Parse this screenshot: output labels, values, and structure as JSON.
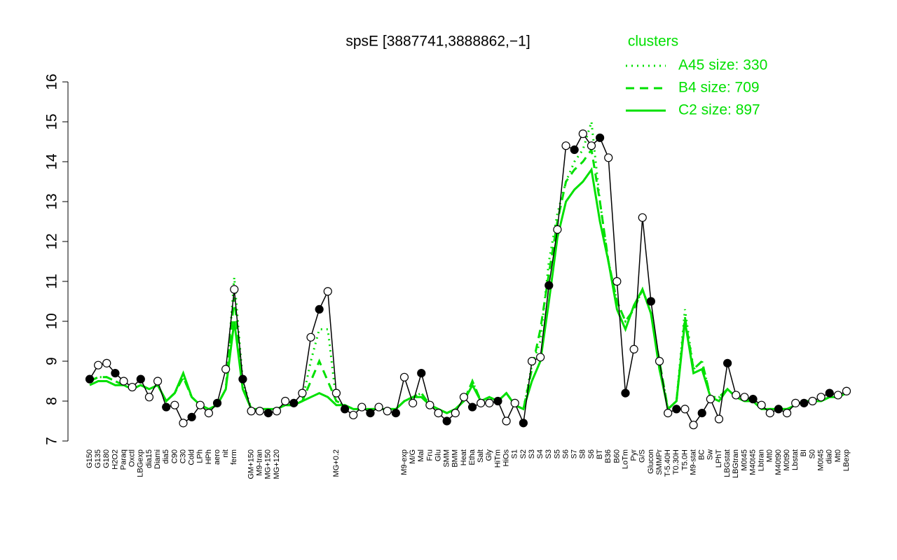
{
  "chart_data": {
    "type": "line",
    "title": "spsE [3887741,3888862,−1]",
    "legend_title": "clusters",
    "legend_position": "top-right",
    "ylim": [
      7,
      16
    ],
    "yticks": [
      7,
      8,
      9,
      10,
      11,
      12,
      13,
      14,
      15,
      16
    ],
    "categories": [
      "G150",
      "G135",
      "G180",
      "H2O2",
      "Paraq",
      "Oxctl",
      "LBGexp",
      "dia15",
      "Diami",
      "dia5",
      "C90",
      "C30",
      "Cold",
      "LPh",
      "HPh",
      "aero",
      "nit",
      "ferm",
      null,
      "GM+150",
      "M9-tran",
      "MG+150",
      "MG+120",
      null,
      null,
      null,
      null,
      null,
      null,
      "MG+0.2",
      null,
      null,
      null,
      null,
      null,
      null,
      null,
      "M9-exp",
      "M/G",
      "Mal",
      "Fru",
      "Glu",
      "SMM",
      "BMM",
      "Heat",
      "Etha",
      "Salt",
      "Gly",
      "HiTm",
      "HiOs",
      "S1",
      "S2",
      "S3",
      "S4",
      "S3",
      "S5",
      "S6",
      "S7",
      "S8",
      "S6",
      "BT",
      "B36",
      "B60",
      "LoTm",
      "Pyr",
      "G/S",
      "Glucon",
      "SMMPr",
      "T-5.40H",
      "T0.30H",
      "T5.0H",
      "M9-stat",
      "BC",
      "Sw",
      "LPhT",
      "LBGstat",
      "LBGtran",
      "M0t45",
      "M40t45",
      "Lbtran",
      "Mt0",
      "M40t90",
      "M0t90",
      "Lbstat",
      "BI",
      "S0",
      "M0t45",
      "dia0",
      "Mt0",
      "LBexp"
    ],
    "series": [
      {
        "name": "expression",
        "color": "#000000",
        "style": "points-line",
        "values": [
          8.55,
          8.9,
          8.95,
          8.7,
          8.5,
          8.35,
          8.55,
          8.1,
          8.5,
          7.85,
          7.9,
          7.45,
          7.6,
          7.9,
          7.7,
          7.95,
          8.8,
          10.8,
          8.55,
          7.75,
          7.75,
          7.7,
          7.75,
          8.0,
          7.95,
          8.2,
          9.6,
          10.3,
          10.75,
          8.2,
          7.8,
          7.65,
          7.85,
          7.7,
          7.85,
          7.75,
          7.7,
          8.6,
          7.95,
          8.7,
          7.9,
          7.7,
          7.5,
          7.7,
          8.1,
          7.85,
          7.95,
          7.95,
          8.0,
          7.5,
          7.95,
          7.45,
          9.0,
          9.1,
          10.9,
          12.3,
          14.4,
          14.3,
          14.7,
          14.4,
          14.6,
          14.1,
          11.0,
          8.2,
          9.3,
          12.6,
          10.5,
          9.0,
          7.7,
          7.8,
          7.8,
          7.4,
          7.7,
          8.05,
          7.55,
          8.95,
          8.15,
          8.1,
          8.05,
          7.9,
          7.7,
          7.8,
          7.7,
          7.95,
          7.95,
          8.0,
          8.1,
          8.2,
          8.15,
          8.25
        ]
      },
      {
        "name": "A45 size: 330",
        "color": "#00e000",
        "style": "dotted",
        "values": [
          8.5,
          8.6,
          8.6,
          8.5,
          8.4,
          8.3,
          8.4,
          8.3,
          8.4,
          8.0,
          8.2,
          8.6,
          8.1,
          7.9,
          7.8,
          7.9,
          8.3,
          11.1,
          8.5,
          7.8,
          7.8,
          7.8,
          7.8,
          7.9,
          7.9,
          8.0,
          9.0,
          9.8,
          9.8,
          8.0,
          7.9,
          7.8,
          7.8,
          7.8,
          7.8,
          7.8,
          7.8,
          8.0,
          8.1,
          8.2,
          7.9,
          7.8,
          7.7,
          7.8,
          8.0,
          8.5,
          8.0,
          8.1,
          8.0,
          8.2,
          7.9,
          7.8,
          8.9,
          9.5,
          11.5,
          12.7,
          13.5,
          14.0,
          14.3,
          15.0,
          13.0,
          11.5,
          10.5,
          10.0,
          10.3,
          10.8,
          10.2,
          9.0,
          7.8,
          8.0,
          10.3,
          8.8,
          9.0,
          8.1,
          8.1,
          8.3,
          8.1,
          8.1,
          8.0,
          7.8,
          7.8,
          7.8,
          7.8,
          7.9,
          8.0,
          8.0,
          8.0,
          8.1,
          8.1,
          8.2
        ]
      },
      {
        "name": "B4 size: 709",
        "color": "#00e000",
        "style": "dashed",
        "values": [
          8.5,
          8.6,
          8.6,
          8.5,
          8.4,
          8.3,
          8.4,
          8.3,
          8.4,
          8.0,
          8.2,
          8.6,
          8.1,
          7.9,
          7.8,
          7.9,
          8.3,
          10.6,
          8.4,
          7.8,
          7.8,
          7.8,
          7.8,
          7.9,
          7.9,
          8.0,
          8.5,
          9.0,
          8.5,
          8.0,
          7.9,
          7.8,
          7.8,
          7.8,
          7.8,
          7.8,
          7.8,
          8.0,
          8.1,
          8.2,
          7.9,
          7.8,
          7.7,
          7.8,
          8.0,
          8.5,
          8.0,
          8.1,
          8.0,
          8.2,
          7.9,
          7.8,
          8.8,
          9.8,
          11.2,
          12.5,
          13.5,
          13.8,
          14.0,
          14.3,
          13.0,
          11.5,
          10.5,
          10.0,
          10.3,
          10.8,
          10.2,
          9.0,
          7.8,
          8.0,
          10.1,
          8.8,
          9.0,
          8.1,
          8.1,
          8.3,
          8.1,
          8.1,
          8.0,
          7.8,
          7.8,
          7.8,
          7.8,
          7.9,
          8.0,
          8.0,
          8.0,
          8.1,
          8.1,
          8.2
        ]
      },
      {
        "name": "C2 size: 897",
        "color": "#00e000",
        "style": "solid",
        "values": [
          8.4,
          8.5,
          8.5,
          8.4,
          8.4,
          8.3,
          8.4,
          8.3,
          8.4,
          8.0,
          8.2,
          8.7,
          8.1,
          7.9,
          7.8,
          7.9,
          8.3,
          10.0,
          8.3,
          7.8,
          7.8,
          7.8,
          7.8,
          7.9,
          7.9,
          8.0,
          8.1,
          8.2,
          8.1,
          7.9,
          7.9,
          7.8,
          7.8,
          7.8,
          7.8,
          7.8,
          7.8,
          8.0,
          8.1,
          8.1,
          7.9,
          7.8,
          7.7,
          7.8,
          8.0,
          8.4,
          8.0,
          8.1,
          8.0,
          8.2,
          7.9,
          7.8,
          8.5,
          9.0,
          10.5,
          12.1,
          13.0,
          13.3,
          13.5,
          13.8,
          12.5,
          11.5,
          10.3,
          9.8,
          10.4,
          10.8,
          10.2,
          8.8,
          7.8,
          8.0,
          10.0,
          8.7,
          8.8,
          8.1,
          8.0,
          8.3,
          8.1,
          8.0,
          8.0,
          7.8,
          7.8,
          7.8,
          7.8,
          7.9,
          8.0,
          8.0,
          8.0,
          8.1,
          8.1,
          8.2
        ]
      }
    ]
  }
}
